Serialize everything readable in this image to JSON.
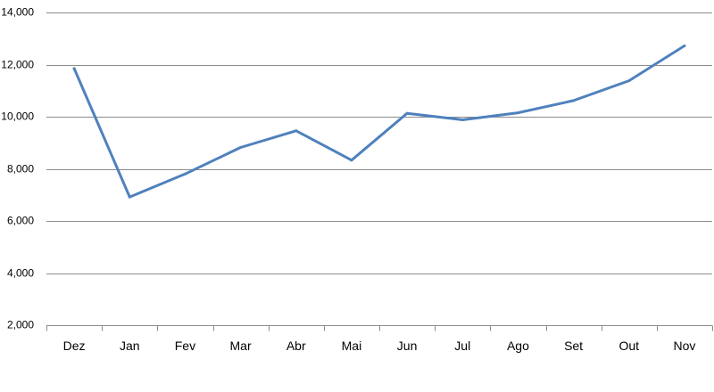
{
  "chart_data": {
    "type": "line",
    "categories": [
      "Dez",
      "Jan",
      "Fev",
      "Mar",
      "Abr",
      "Mai",
      "Jun",
      "Jul",
      "Ago",
      "Set",
      "Out",
      "Nov"
    ],
    "series": [
      {
        "values": [
          11850,
          6920,
          7800,
          8820,
          9460,
          8330,
          10130,
          9880,
          10150,
          10620,
          11380,
          12720
        ],
        "color": "#4f81bd"
      }
    ],
    "ylim": [
      2000,
      14000
    ],
    "yticks": [
      2000,
      4000,
      6000,
      8000,
      10000,
      12000,
      14000
    ],
    "ytick_labels": [
      "2,000",
      "4,000",
      "6,000",
      "8,000",
      "10,000",
      "12,000",
      "14,000"
    ],
    "title": "",
    "xlabel": "",
    "ylabel": "",
    "grid": true,
    "legend": "none"
  }
}
